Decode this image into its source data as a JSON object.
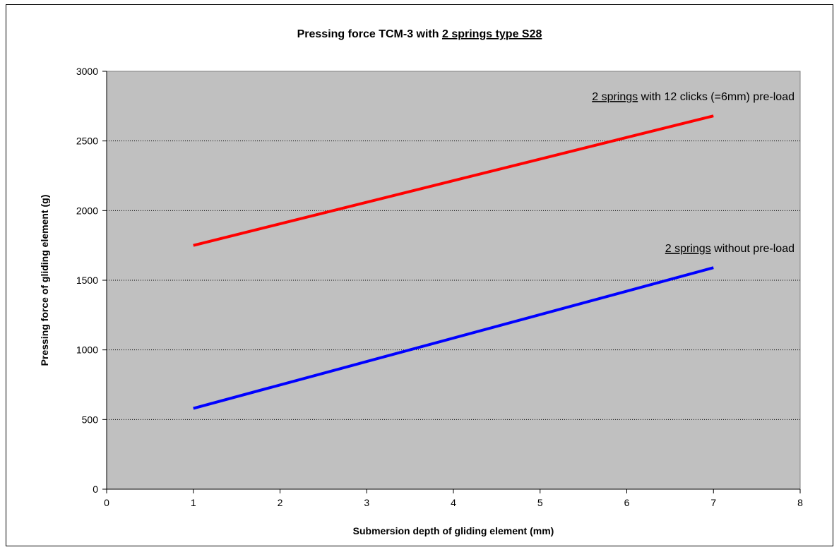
{
  "chart_data": {
    "type": "line",
    "title": {
      "prefix": "Pressing force TCM-3 with ",
      "underlined": "2 springs type S28"
    },
    "xlabel": "Submersion depth of gliding element (mm)",
    "ylabel": "Pressing  force of gliding element (g)",
    "xlim": [
      0,
      8
    ],
    "ylim": [
      0,
      3000
    ],
    "x_ticks": [
      0,
      1,
      2,
      3,
      4,
      5,
      6,
      7,
      8
    ],
    "y_ticks": [
      0,
      500,
      1000,
      1500,
      2000,
      2500,
      3000
    ],
    "grid": "horizontal-dotted",
    "legend": "none",
    "plot_background": "#c0c0c0",
    "series": [
      {
        "color": "#ff0000",
        "x": [
          1,
          7
        ],
        "y": [
          1750,
          2680
        ],
        "annotation": {
          "underlined": "2 springs",
          "rest": " with 12 clicks (=6mm) pre-load"
        }
      },
      {
        "color": "#0000ff",
        "x": [
          1,
          7
        ],
        "y": [
          580,
          1590
        ],
        "annotation": {
          "underlined": "2 springs",
          "rest": " without pre-load"
        }
      }
    ]
  }
}
